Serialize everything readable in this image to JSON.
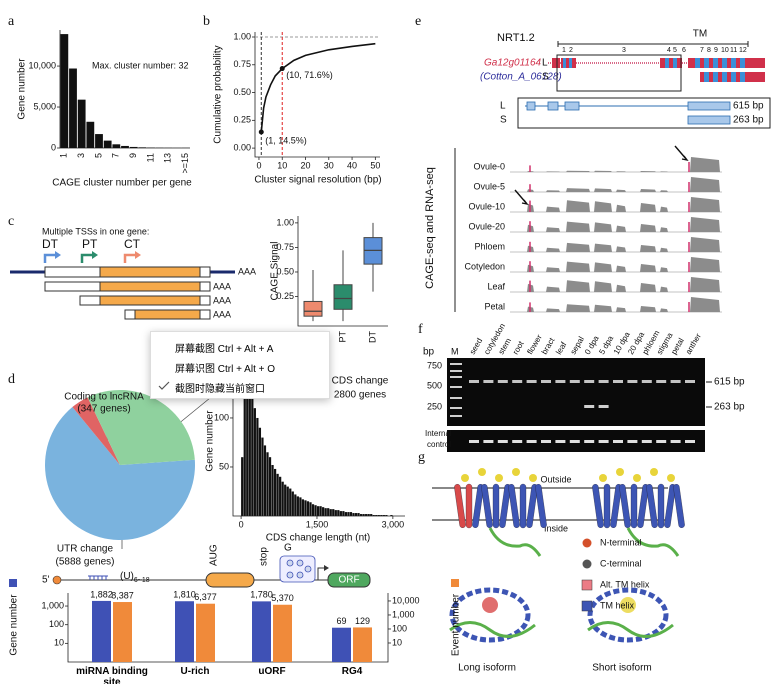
{
  "panel_labels": [
    "a",
    "b",
    "c",
    "d",
    "e",
    "f",
    "g"
  ],
  "chart_data": [
    {
      "type": "bar",
      "categories": [
        "1",
        null,
        "3",
        null,
        "5",
        null,
        "7",
        null,
        "9",
        null,
        "11",
        null,
        "13",
        null,
        ">=15"
      ],
      "values": [
        13900,
        9700,
        5900,
        3200,
        1700,
        900,
        450,
        250,
        130,
        80,
        50,
        30,
        20,
        10,
        15
      ],
      "color": "#111111",
      "ylim": [
        0,
        14400
      ],
      "yticks": [
        0,
        {
          "value": 5000,
          "label": "5,000"
        },
        {
          "value": 10000,
          "label": "10,000"
        }
      ],
      "xlabel": "CAGE cluster number per gene",
      "ylabel": "Gene number",
      "annotation": "Max. cluster number: 32"
    },
    {
      "type": "line",
      "x": [
        1,
        2,
        3,
        5,
        7,
        10,
        15,
        20,
        30,
        40,
        50
      ],
      "values": [
        0.145,
        0.36,
        0.46,
        0.57,
        0.65,
        0.716,
        0.79,
        0.835,
        0.885,
        0.915,
        0.94
      ],
      "color": "#111111",
      "xlim": [
        -1.7,
        52
      ],
      "ylim": [
        -0.08,
        1.045
      ],
      "xticks": [
        0,
        10,
        20,
        30,
        40,
        50
      ],
      "yticks": [
        {
          "value": 0,
          "label": "0.00"
        },
        0.25,
        {
          "value": 0.5,
          "label": "0.50"
        },
        0.75,
        {
          "value": 1,
          "label": "1.00"
        }
      ],
      "xlabel": "Cluster signal resolution (bp)",
      "ylabel": "Cumulative probability",
      "reference_lines": [
        {
          "axis": "y",
          "value": 1,
          "color": "#999999"
        },
        {
          "axis": "x",
          "value": 1,
          "color": "#333333"
        },
        {
          "axis": "x",
          "value": 10,
          "color": "#e02020"
        }
      ],
      "points": [
        {
          "x": 1,
          "y": 0.145,
          "label": "(1, 14.5%)"
        },
        {
          "x": 10,
          "y": 0.716,
          "label": "(10, 71.6%)"
        }
      ]
    },
    {
      "type": "box",
      "categories": [
        "CT",
        "PT",
        "DT"
      ],
      "colors": [
        "#ee8a6e",
        "#2b8c6c",
        "#5b8fd8"
      ],
      "boxes": [
        {
          "whislo": 0,
          "q1": 0.05,
          "med": 0.1,
          "q3": 0.2,
          "whishi": 0.52
        },
        {
          "whislo": 0,
          "q1": 0.12,
          "med": 0.23,
          "q3": 0.37,
          "whishi": 0.72
        },
        {
          "whislo": 0.3,
          "q1": 0.58,
          "med": 0.72,
          "q3": 0.85,
          "whishi": 1
        }
      ],
      "ylim": [
        -0.05,
        1.07
      ],
      "yticks": [
        0.25,
        {
          "value": 0.5,
          "label": "0.50"
        },
        0.75,
        {
          "value": 1,
          "label": "1.00"
        }
      ],
      "ylabel": "CAGE Signal"
    },
    {
      "type": "pie",
      "categories": [
        "UTR change",
        "Coding to lncRNA",
        "CDS change"
      ],
      "values": [
        5888,
        347,
        2800
      ],
      "value_labels": [
        "(5888 genes)",
        "(347 genes)",
        "2800 genes"
      ],
      "colors": [
        "#7ab3de",
        "#e06464",
        "#8fd19e"
      ]
    },
    {
      "type": "histogram",
      "bins": [
        0,
        50,
        100,
        150,
        200,
        250,
        300,
        350,
        400,
        450,
        500,
        550,
        600,
        650,
        700,
        750,
        800,
        850,
        900,
        950,
        1000,
        1050,
        1100,
        1150,
        1200,
        1250,
        1300,
        1350,
        1400,
        1450,
        1500,
        1550,
        1600,
        1650,
        1700,
        1750,
        1800,
        1850,
        1900,
        1950,
        2000,
        2050,
        2100,
        2150,
        2200,
        2250,
        2300,
        2350,
        2400,
        2450,
        2500,
        2550,
        2600,
        2650,
        2700,
        2750,
        2800,
        2850,
        2900,
        2950,
        3000
      ],
      "values": [
        60,
        130,
        150,
        140,
        125,
        110,
        100,
        90,
        80,
        72,
        65,
        60,
        52,
        48,
        43,
        40,
        35,
        32,
        30,
        28,
        25,
        22,
        20,
        19,
        17,
        16,
        15,
        14,
        12,
        11,
        10,
        10,
        9,
        8,
        8,
        7,
        7,
        6,
        6,
        5,
        5,
        4,
        4,
        4,
        3,
        3,
        3,
        2,
        2,
        2,
        2,
        2,
        1,
        1,
        1,
        1,
        1,
        1,
        0,
        1
      ],
      "color": "#111111",
      "xlim": [
        -160,
        3240
      ],
      "ylim": [
        0,
        153
      ],
      "xticks": [
        0,
        {
          "value": 1500,
          "label": "1,500"
        },
        {
          "value": 3000,
          "label": "3,000"
        }
      ],
      "yticks": [
        50,
        100,
        150
      ],
      "xlabel": "CDS change length (nt)",
      "ylabel": "Gene number"
    },
    {
      "type": "grouped_bar",
      "log": true,
      "categories": [
        "miRNA binding site",
        "U-rich",
        "uORF",
        "RG4"
      ],
      "series": [
        {
          "name": "Gene number",
          "color": "#3f51b5",
          "values": [
            1882,
            1810,
            1780,
            69
          ],
          "value_labels": [
            "1,882",
            "1,810",
            "1,780",
            "69"
          ]
        },
        {
          "name": "Event number",
          "color": "#f08a3a",
          "axis": "y2",
          "values": [
            8387,
            6377,
            5370,
            129
          ],
          "value_labels": [
            "8,387",
            "6,377",
            "5,370",
            "129"
          ]
        }
      ],
      "ylim": [
        1,
        5000
      ],
      "yticks": [
        10,
        100,
        {
          "value": 1000,
          "label": "1,000"
        }
      ],
      "y2lim": [
        0.44,
        37000
      ],
      "y2ticks": [
        10,
        100,
        {
          "value": 1000,
          "label": "1,000"
        },
        {
          "value": 10000,
          "label": "10,000"
        }
      ]
    }
  ],
  "diagram_c": {
    "heading": "Multiple TSSs in one gene:",
    "tss": [
      "DT",
      "PT",
      "CT"
    ],
    "polya": [
      "AAA",
      "AAA",
      "AAA",
      "AAA"
    ]
  },
  "diagram_d": {
    "five_prime": "5'",
    "u": "(U)",
    "u_sub": "6~18",
    "start": "AUG",
    "stop": "stop",
    "g": "G",
    "orf": "ORF"
  },
  "panel_e": {
    "gene": "NRT1.2",
    "tm": "TM",
    "gene_id": "Ga12g01164",
    "alias": "(Cotton_A_06128)",
    "isoforms": [
      "L",
      "S"
    ],
    "exons": [
      "1",
      "2",
      "3",
      "4",
      "5",
      "6",
      "7",
      "8",
      "9",
      "10",
      "11",
      "12"
    ],
    "model_isoforms": [
      "L",
      "S"
    ],
    "sizes": [
      "615 bp",
      "263 bp"
    ],
    "track_title": "CAGE-seq and RNA-seq",
    "tracks": [
      "Ovule-0",
      "Ovule-5",
      "Ovule-10",
      "Ovule-20",
      "Phloem",
      "Cotyledon",
      "Leaf",
      "Petal"
    ]
  },
  "panel_f": {
    "bp": "bp",
    "marker": "M",
    "lanes": [
      "seed",
      "cotyledon",
      "stem",
      "root",
      "flower",
      "bract",
      "leaf",
      "sepal",
      "0 dpa",
      "5 dpa",
      "10 dpa",
      "20 dpa",
      "phloem",
      "stigma",
      "petal",
      "anther"
    ],
    "ladder": [
      750,
      500,
      250
    ],
    "sizes": [
      "615 bp",
      "263 bp"
    ],
    "control": [
      "Internal",
      "control"
    ]
  },
  "panel_g": {
    "outside": "Outside",
    "inside": "Inside",
    "legend": [
      {
        "label": "N-terminal",
        "color": "#d4502a"
      },
      {
        "label": "C-terminal",
        "color": "#555555"
      },
      {
        "label": "Alt. TM helix",
        "color": "#ec7c86"
      },
      {
        "label": "TM helix",
        "color": "#3d55b4"
      }
    ],
    "isoforms": [
      "Long isoform",
      "Short isoform"
    ]
  },
  "menu": {
    "items": [
      "屏幕截图 Ctrl + Alt + A",
      "屏幕识图 Ctrl + Alt + O",
      "截图时隐藏当前窗口"
    ]
  }
}
